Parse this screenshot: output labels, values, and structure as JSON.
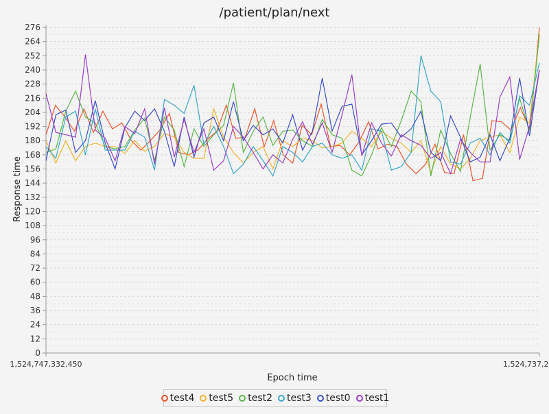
{
  "chart_data": {
    "type": "line",
    "title": "/patient/plan/next",
    "xlabel": "Epoch time",
    "ylabel": "Response time",
    "ylim": [
      0,
      276
    ],
    "ytick_step": 12,
    "x_tick_labels": [
      "1,524,747,332,450",
      "1,524,737,2"
    ],
    "grid": true,
    "legend_position": "bottom",
    "series": [
      {
        "name": "test4",
        "color": "#e8552d",
        "values": [
          185,
          210,
          200,
          188,
          207,
          187,
          205,
          190,
          195,
          180,
          172,
          180,
          189,
          203,
          170,
          168,
          172,
          181,
          188,
          210,
          182,
          183,
          207,
          175,
          197,
          168,
          161,
          193,
          185,
          211,
          175,
          176,
          168,
          179,
          196,
          173,
          177,
          175,
          160,
          152,
          160,
          177,
          153,
          152,
          185,
          146,
          148,
          197,
          196,
          189,
          208,
          189,
          276
        ]
      },
      {
        "name": "test5",
        "color": "#f0b32e",
        "values": [
          180,
          161,
          180,
          163,
          175,
          178,
          175,
          175,
          169,
          180,
          171,
          175,
          186,
          183,
          170,
          165,
          165,
          207,
          183,
          170,
          161,
          170,
          175,
          156,
          180,
          175,
          182,
          180,
          174,
          175,
          178,
          188,
          182,
          175,
          188,
          182,
          178,
          170,
          180,
          153,
          175,
          160,
          156,
          165,
          180,
          183,
          185,
          170,
          200,
          195,
          270
        ]
      },
      {
        "name": "test2",
        "color": "#5ab64a",
        "values": [
          170,
          173,
          205,
          222,
          200,
          195,
          175,
          173,
          175,
          189,
          199,
          163,
          200,
          189,
          158,
          190,
          175,
          185,
          193,
          229,
          170,
          188,
          200,
          176,
          188,
          189,
          180,
          175,
          198,
          185,
          182,
          155,
          150,
          168,
          191,
          175,
          197,
          222,
          213,
          150,
          189,
          169,
          154,
          200,
          245,
          172,
          185,
          180,
          216,
          188,
          270
        ]
      },
      {
        "name": "test3",
        "color": "#3aa6c8",
        "values": [
          175,
          165,
          200,
          205,
          168,
          207,
          172,
          172,
          172,
          188,
          183,
          155,
          215,
          210,
          203,
          227,
          177,
          192,
          175,
          152,
          160,
          175,
          163,
          150,
          175,
          170,
          162,
          175,
          178,
          168,
          165,
          168,
          155,
          190,
          188,
          155,
          158,
          170,
          252,
          222,
          213,
          162,
          160,
          178,
          182,
          168,
          187,
          178,
          218,
          210,
          246
        ]
      },
      {
        "name": "test0",
        "color": "#3b4fc2",
        "values": [
          163,
          202,
          206,
          170,
          180,
          214,
          178,
          156,
          191,
          205,
          197,
          207,
          188,
          158,
          200,
          166,
          195,
          200,
          180,
          213,
          180,
          193,
          185,
          190,
          178,
          202,
          172,
          188,
          233,
          188,
          209,
          211,
          168,
          180,
          194,
          195,
          183,
          190,
          205,
          170,
          163,
          201,
          183,
          162,
          166,
          185,
          163,
          182,
          233,
          184,
          240
        ]
      },
      {
        "name": "test1",
        "color": "#9a3fc4",
        "values": [
          220,
          187,
          185,
          183,
          253,
          189,
          182,
          163,
          192,
          186,
          207,
          160,
          208,
          166,
          198,
          170,
          190,
          155,
          163,
          192,
          183,
          170,
          156,
          168,
          161,
          181,
          196,
          177,
          195,
          170,
          202,
          236,
          167,
          195,
          178,
          167,
          185,
          180,
          176,
          165,
          170,
          152,
          181,
          170,
          162,
          162,
          217,
          234,
          164,
          192,
          240
        ]
      }
    ]
  }
}
